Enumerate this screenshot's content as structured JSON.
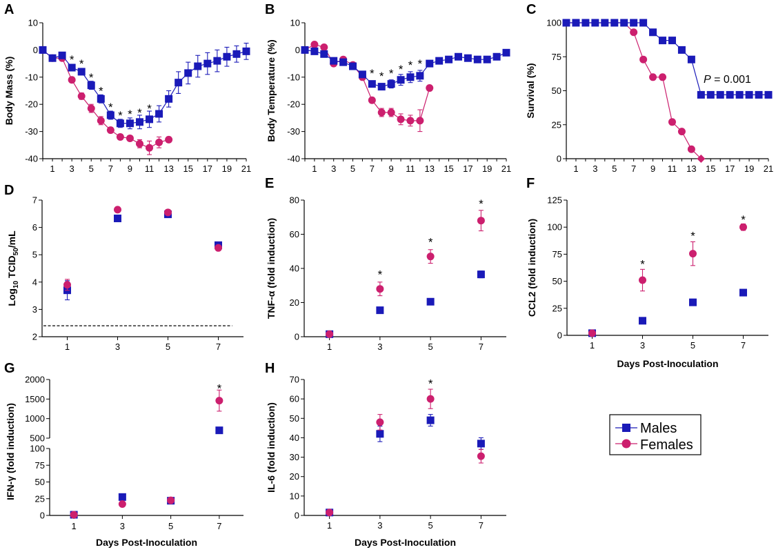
{
  "colors": {
    "males": "#1a1ab8",
    "females": "#cc1f6e",
    "axis": "#000000"
  },
  "legend": {
    "males": "Males",
    "females": "Females"
  },
  "common_xlabel": "Days Post-Inoculation",
  "pvalue": {
    "p": "P",
    "rest": " = 0.001"
  },
  "chart_data": [
    {
      "id": "A",
      "panel_label": "A",
      "type": "line",
      "ylabel": "Body Mass (%)",
      "xlabel": "",
      "xlim": [
        0,
        21
      ],
      "ylim": [
        -40,
        10
      ],
      "yticks": [
        -40,
        -30,
        -20,
        -10,
        0,
        10
      ],
      "xticks": [
        1,
        3,
        5,
        7,
        9,
        11,
        13,
        15,
        17,
        19,
        21
      ],
      "series": [
        {
          "name": "Males",
          "x": [
            0,
            1,
            2,
            3,
            4,
            5,
            6,
            7,
            8,
            9,
            10,
            11,
            12,
            13,
            14,
            15,
            16,
            17,
            18,
            19,
            20,
            21
          ],
          "y": [
            0,
            -3,
            -2,
            -6.5,
            -8,
            -13,
            -18,
            -24,
            -27,
            -27,
            -26.5,
            -25.5,
            -23.5,
            -18,
            -12,
            -8.5,
            -6,
            -5,
            -4,
            -2.5,
            -1.5,
            -0.5
          ],
          "err": [
            0,
            1,
            1,
            1.2,
            1.2,
            1.5,
            1.5,
            1.5,
            1.5,
            2,
            2.5,
            3,
            3,
            3,
            4,
            4,
            4,
            4,
            4,
            3.5,
            3,
            3
          ]
        },
        {
          "name": "Females",
          "x": [
            0,
            1,
            2,
            3,
            4,
            5,
            6,
            7,
            8,
            9,
            10,
            11,
            12,
            13
          ],
          "y": [
            0,
            -3,
            -3,
            -11,
            -17,
            -21.5,
            -26,
            -29.5,
            -32,
            -32.5,
            -34.5,
            -36,
            -34,
            -33
          ],
          "err": [
            0,
            0.5,
            0.8,
            1,
            1.2,
            1.5,
            1.5,
            1,
            1,
            1,
            1.5,
            2.5,
            2,
            1
          ]
        }
      ],
      "stars": [
        3,
        4,
        5,
        6,
        7,
        8,
        9,
        10,
        11
      ],
      "stars_y": [
        -3.5,
        -5,
        -10,
        -15,
        -21,
        -24,
        -23.5,
        -23,
        -21.5
      ]
    },
    {
      "id": "B",
      "panel_label": "B",
      "type": "line",
      "ylabel": "Body Temperature (%)",
      "xlabel": "",
      "xlim": [
        0,
        21
      ],
      "ylim": [
        -40,
        10
      ],
      "yticks": [
        -40,
        -30,
        -20,
        -10,
        0,
        10
      ],
      "xticks": [
        1,
        3,
        5,
        7,
        9,
        11,
        13,
        15,
        17,
        19,
        21
      ],
      "series": [
        {
          "name": "Males",
          "x": [
            0,
            1,
            2,
            3,
            4,
            5,
            6,
            7,
            8,
            9,
            10,
            11,
            12,
            13,
            14,
            15,
            16,
            17,
            18,
            19,
            20,
            21
          ],
          "y": [
            0,
            -0.5,
            -1.5,
            -4,
            -4.5,
            -6,
            -9,
            -12.5,
            -13.5,
            -12.5,
            -11,
            -10,
            -9.5,
            -5,
            -4,
            -3.5,
            -2.5,
            -3,
            -3.5,
            -3.5,
            -2.5,
            -1
          ],
          "err": [
            0,
            0.5,
            0.5,
            0.5,
            0.5,
            0.8,
            1,
            1,
            1,
            1.5,
            2,
            2,
            2,
            0.8,
            0.5,
            0.5,
            0.5,
            0.5,
            0.5,
            0.5,
            0.5,
            0.5
          ]
        },
        {
          "name": "Females",
          "x": [
            0,
            1,
            2,
            3,
            4,
            5,
            6,
            7,
            8,
            9,
            10,
            11,
            12,
            13
          ],
          "y": [
            0,
            2,
            1,
            -5,
            -3.5,
            -5.5,
            -10,
            -18.5,
            -23,
            -23,
            -25.5,
            -26,
            -26,
            -14
          ],
          "err": [
            0,
            0.5,
            0.5,
            0.5,
            0.5,
            0.5,
            1,
            1,
            1.5,
            1.5,
            2,
            2,
            4,
            0.8
          ]
        }
      ],
      "stars": [
        7,
        8,
        9,
        10,
        11,
        12
      ],
      "stars_y": [
        -8.5,
        -9.5,
        -8.5,
        -7,
        -5.5,
        -5
      ]
    },
    {
      "id": "C",
      "panel_label": "C",
      "type": "line",
      "ylabel": "Survival (%)",
      "xlabel": "",
      "xlim": [
        0,
        21
      ],
      "ylim": [
        0,
        100
      ],
      "yticks": [
        0,
        25,
        50,
        75,
        100
      ],
      "xticks": [
        1,
        3,
        5,
        7,
        9,
        11,
        13,
        15,
        17,
        19,
        21
      ],
      "series": [
        {
          "name": "Males",
          "x": [
            0,
            1,
            2,
            3,
            4,
            5,
            6,
            7,
            8,
            9,
            10,
            11,
            12,
            13,
            14,
            15,
            16,
            17,
            18,
            19,
            20,
            21
          ],
          "y": [
            100,
            100,
            100,
            100,
            100,
            100,
            100,
            100,
            100,
            93,
            87,
            87,
            80,
            73,
            47,
            47,
            47,
            47,
            47,
            47,
            47,
            47
          ]
        },
        {
          "name": "Females",
          "x": [
            0,
            1,
            2,
            3,
            4,
            5,
            6,
            7,
            8,
            9,
            10,
            11,
            12,
            13,
            14
          ],
          "y": [
            100,
            100,
            100,
            100,
            100,
            100,
            100,
            93,
            73,
            60,
            60,
            27,
            20,
            7,
            0
          ]
        }
      ]
    },
    {
      "id": "D",
      "panel_label": "D",
      "type": "scatter",
      "ylabel_main": "Log",
      "ylabel_sub": "10",
      "ylabel_mid": " TCID",
      "ylabel_sub2": "50",
      "ylabel_end": "/mL",
      "xlabel": "",
      "xlim": [
        0,
        8
      ],
      "ylim": [
        2,
        7
      ],
      "yticks": [
        2,
        3,
        4,
        5,
        6,
        7
      ],
      "xticks": [
        1,
        3,
        5,
        7
      ],
      "detection_limit": 2.4,
      "series": [
        {
          "name": "Males",
          "x": [
            1,
            3,
            5,
            7
          ],
          "y": [
            3.7,
            6.33,
            6.48,
            5.35
          ],
          "err": [
            0.35,
            0,
            0.05,
            0
          ]
        },
        {
          "name": "Females",
          "x": [
            1,
            3,
            5,
            7
          ],
          "y": [
            3.9,
            6.65,
            6.55,
            5.25
          ],
          "err": [
            0.2,
            0,
            0.1,
            0
          ]
        }
      ]
    },
    {
      "id": "E",
      "panel_label": "E",
      "type": "scatter",
      "ylabel": "TNF-α (fold induction)",
      "xlabel": "",
      "xlim": [
        0,
        8
      ],
      "ylim": [
        0,
        80
      ],
      "yticks": [
        0,
        20,
        40,
        60,
        80
      ],
      "xticks": [
        1,
        3,
        5,
        7
      ],
      "series": [
        {
          "name": "Males",
          "x": [
            1,
            3,
            5,
            7
          ],
          "y": [
            1.5,
            15.5,
            20.5,
            36.5
          ],
          "err": [
            0,
            1,
            1,
            2
          ]
        },
        {
          "name": "Females",
          "x": [
            1,
            3,
            5,
            7
          ],
          "y": [
            1.5,
            28,
            47,
            68
          ],
          "err": [
            0.5,
            4,
            4,
            6
          ]
        }
      ],
      "stars": [
        3,
        5,
        7
      ],
      "stars_y": [
        36.5,
        55.5,
        78
      ]
    },
    {
      "id": "F",
      "panel_label": "F",
      "type": "scatter",
      "ylabel": "CCL2 (fold induction)",
      "xlabel": "Days Post-Inoculation",
      "xlim": [
        0,
        8
      ],
      "ylim": [
        0,
        125
      ],
      "yticks": [
        0,
        25,
        50,
        75,
        100,
        125
      ],
      "xticks": [
        1,
        3,
        5,
        7
      ],
      "series": [
        {
          "name": "Males",
          "x": [
            1,
            3,
            5,
            7
          ],
          "y": [
            2,
            13.5,
            30.5,
            39.5
          ],
          "err": [
            0,
            0,
            3,
            0
          ]
        },
        {
          "name": "Females",
          "x": [
            1,
            3,
            5,
            7
          ],
          "y": [
            2,
            51,
            75.5,
            100
          ],
          "err": [
            0.5,
            10,
            11,
            3
          ]
        }
      ],
      "stars": [
        3,
        5,
        7
      ],
      "stars_y": [
        66,
        92,
        107
      ]
    },
    {
      "id": "G",
      "panel_label": "G",
      "type": "scatter",
      "ylabel": "IFN-γ (fold induction)",
      "xlabel": "Days Post-Inoculation",
      "xlim": [
        0,
        8
      ],
      "broken_axis": true,
      "upper_ylim": [
        500,
        2000
      ],
      "upper_yticks": [
        500,
        1000,
        1500,
        2000
      ],
      "lower_ylim": [
        0,
        100
      ],
      "lower_yticks": [
        0,
        25,
        50,
        75,
        100
      ],
      "xticks": [
        1,
        3,
        5,
        7
      ],
      "series": [
        {
          "name": "Males",
          "x": [
            1,
            3,
            5,
            7
          ],
          "y": [
            1,
            27.5,
            22,
            700
          ],
          "err": [
            0,
            0,
            0,
            0
          ]
        },
        {
          "name": "Females",
          "x": [
            1,
            3,
            5,
            7
          ],
          "y": [
            1,
            17,
            22.5,
            1460
          ],
          "err": [
            0,
            0,
            0,
            270
          ]
        }
      ],
      "stars": [
        7
      ],
      "stars_y": [
        1800
      ]
    },
    {
      "id": "H",
      "panel_label": "H",
      "type": "scatter",
      "ylabel": "IL-6 (fold induction)",
      "xlabel": "Days Post-Inoculation",
      "xlim": [
        0,
        8
      ],
      "ylim": [
        0,
        70
      ],
      "yticks": [
        0,
        10,
        20,
        30,
        40,
        50,
        60,
        70
      ],
      "xticks": [
        1,
        3,
        5,
        7
      ],
      "series": [
        {
          "name": "Males",
          "x": [
            1,
            3,
            5,
            7
          ],
          "y": [
            1.5,
            42,
            49,
            37
          ],
          "err": [
            0,
            4,
            3,
            3
          ]
        },
        {
          "name": "Females",
          "x": [
            1,
            3,
            5,
            7
          ],
          "y": [
            1.5,
            48,
            60,
            30.5
          ],
          "err": [
            0,
            4,
            5,
            3.5
          ]
        }
      ],
      "stars": [
        5
      ],
      "stars_y": [
        68
      ]
    }
  ]
}
